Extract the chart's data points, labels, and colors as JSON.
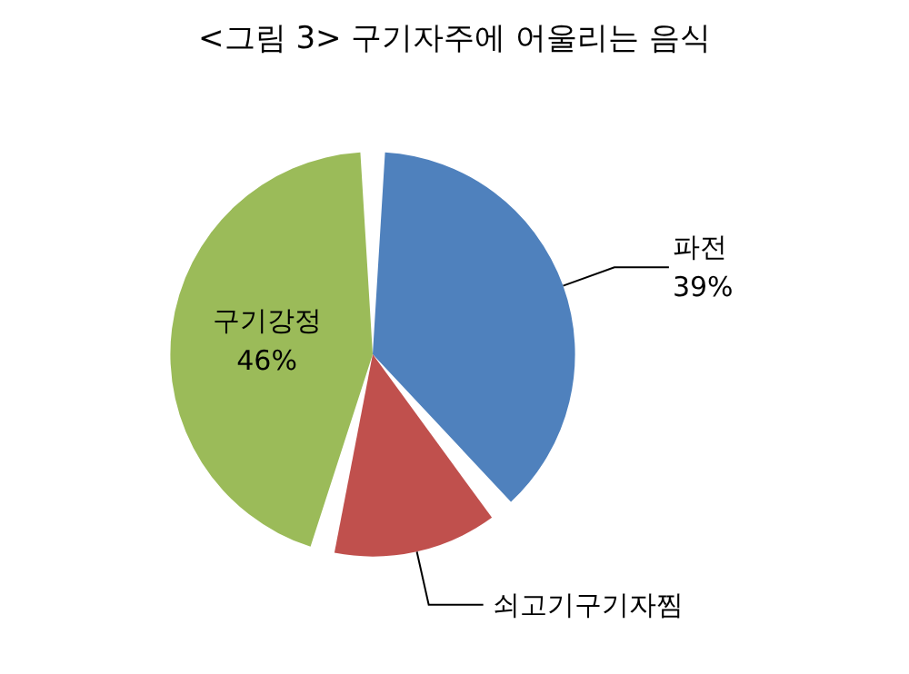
{
  "chart_data": {
    "type": "pie",
    "title": "<그림 3> 구기자주에 어울리는 음식",
    "categories": [
      "파전",
      "쇠고기구기자찜",
      "구기강정"
    ],
    "values": [
      39,
      15,
      46
    ],
    "value_labels": [
      "39%",
      null,
      "46%"
    ],
    "colors": [
      "#4f81bd",
      "#c0504d",
      "#9bbb59"
    ],
    "legend": false
  }
}
